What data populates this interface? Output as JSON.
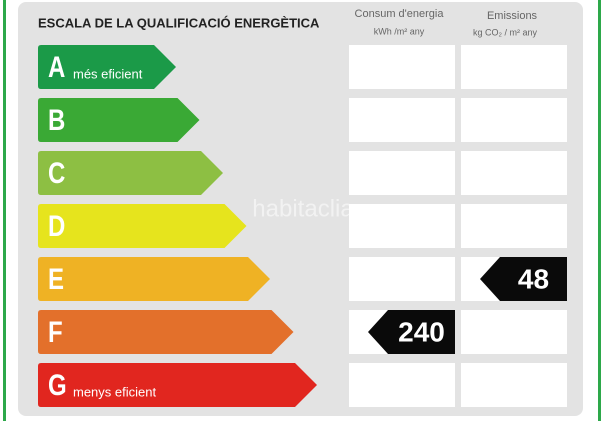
{
  "title": "ESCALA DE LA QUALIFICACIÓ ENERGÈTICA",
  "columns": [
    {
      "name": "Consum d'energia",
      "unit": "kWh /m² any"
    },
    {
      "name": "Emissions",
      "unit": "kg CO₂ / m² any"
    }
  ],
  "watermark": "habitaclia",
  "rows": [
    {
      "letter": "A",
      "label": "més eficient",
      "color": "#1b9a48",
      "consumption": null,
      "emissions": null
    },
    {
      "letter": "B",
      "color": "#3aa935",
      "consumption": null,
      "emissions": null
    },
    {
      "letter": "C",
      "color": "#8dbf43",
      "consumption": null,
      "emissions": null
    },
    {
      "letter": "D",
      "color": "#e6e41d",
      "consumption": null,
      "emissions": null
    },
    {
      "letter": "E",
      "color": "#efb224",
      "consumption": null,
      "emissions": 48
    },
    {
      "letter": "F",
      "color": "#e3702b",
      "consumption": 240,
      "emissions": null
    },
    {
      "letter": "G",
      "label": "menys eficient",
      "color": "#e1261f",
      "consumption": null,
      "emissions": null
    }
  ]
}
